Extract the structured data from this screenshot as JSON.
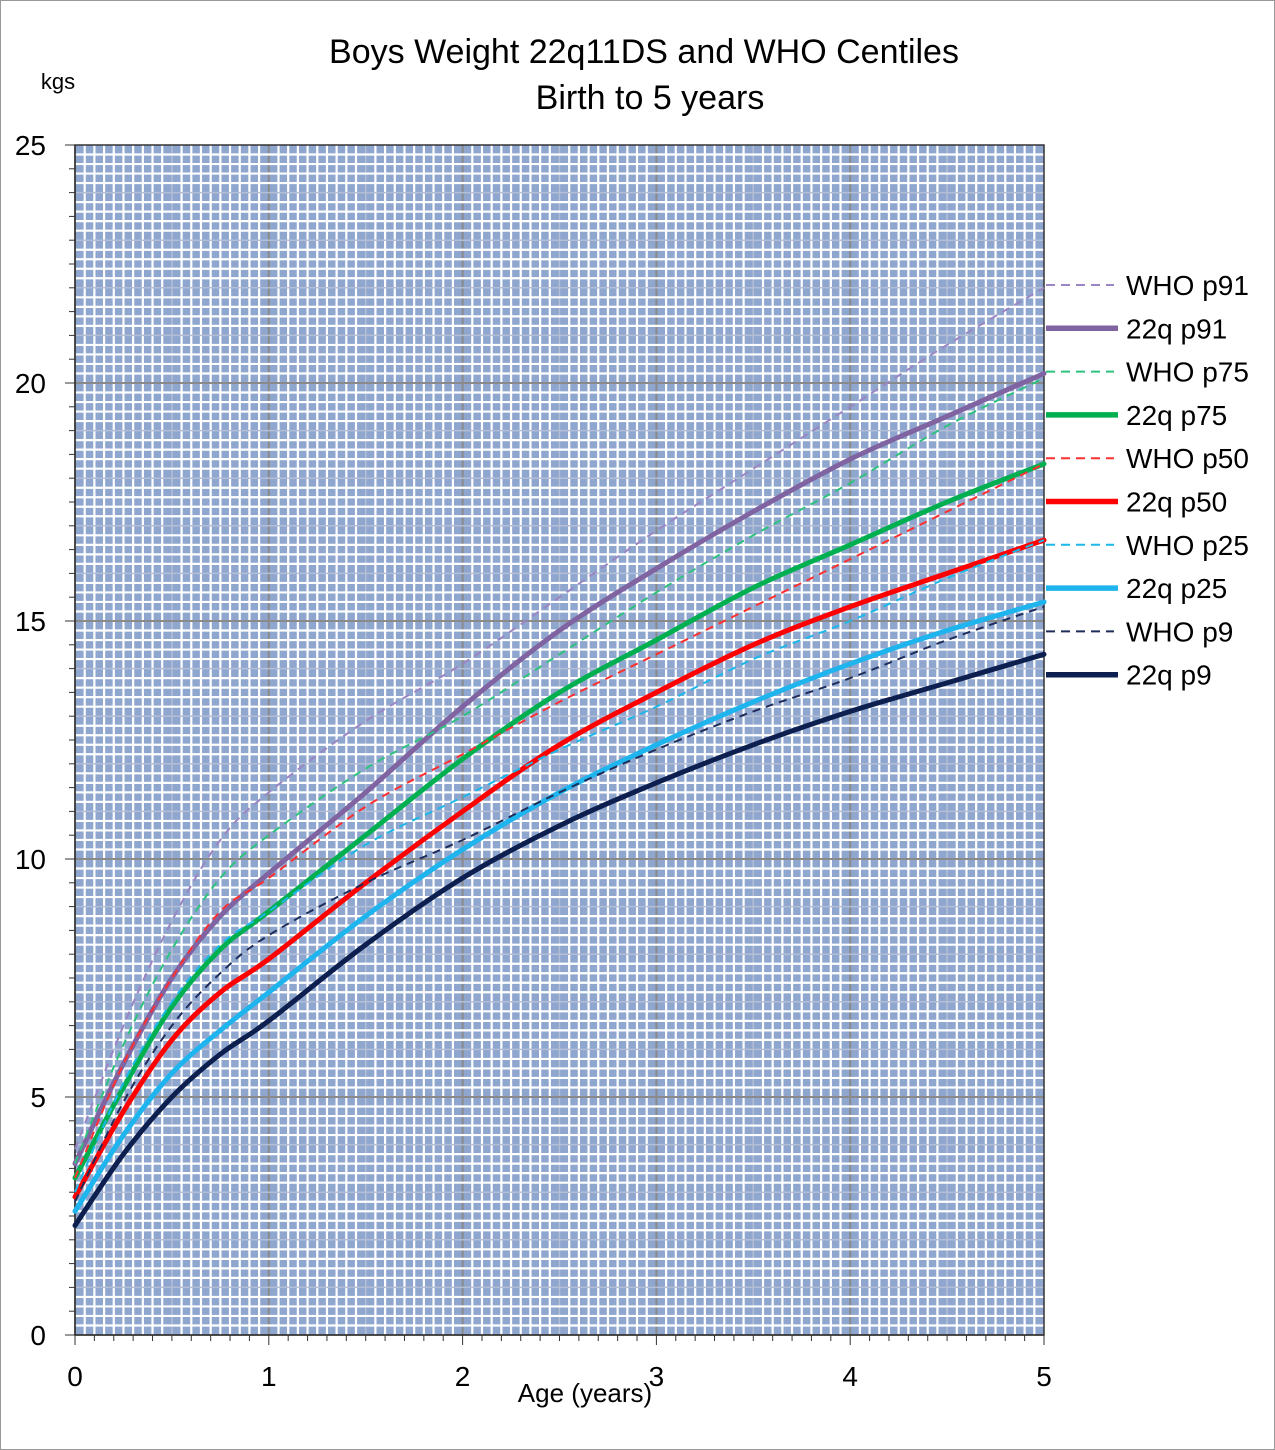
{
  "chart_data": {
    "type": "line",
    "title": "Boys Weight  22q11DS and WHO Centiles",
    "subtitle": "Birth to 5 years",
    "xlabel": "Age (years)",
    "ylabel": "kgs",
    "xlim": [
      0,
      5
    ],
    "ylim": [
      0,
      25
    ],
    "x_ticks": [
      "0",
      "1",
      "2",
      "3",
      "4",
      "5"
    ],
    "y_ticks": [
      "0",
      "5",
      "10",
      "15",
      "20",
      "25"
    ],
    "grid": true,
    "legend_position": "right",
    "x": [
      0,
      0.25,
      0.5,
      0.75,
      1,
      1.5,
      2,
      2.5,
      3,
      3.5,
      4,
      4.5,
      5
    ],
    "series": [
      {
        "name": "WHO p91",
        "color": "#9b86c3",
        "style": "dashed",
        "values": [
          3.9,
          6.5,
          8.7,
          10.4,
          11.4,
          12.9,
          14.1,
          15.5,
          16.9,
          18.2,
          19.5,
          20.8,
          22.0
        ]
      },
      {
        "name": "22q p91",
        "color": "#8064a2",
        "style": "solid",
        "values": [
          3.6,
          5.7,
          7.5,
          8.8,
          9.7,
          11.4,
          13.2,
          14.8,
          16.1,
          17.3,
          18.4,
          19.3,
          20.2
        ]
      },
      {
        "name": "WHO p75",
        "color": "#2ec27e",
        "style": "dashed",
        "values": [
          3.6,
          6.1,
          8.1,
          9.6,
          10.5,
          11.9,
          13.0,
          14.3,
          15.6,
          16.8,
          17.9,
          19.1,
          20.1
        ]
      },
      {
        "name": "22q p75",
        "color": "#00b050",
        "style": "solid",
        "values": [
          3.3,
          5.2,
          6.9,
          8.1,
          8.9,
          10.5,
          12.1,
          13.5,
          14.6,
          15.7,
          16.6,
          17.5,
          18.3
        ]
      },
      {
        "name": "WHO p50",
        "color": "#ff3030",
        "style": "dashed",
        "values": [
          3.3,
          5.7,
          7.5,
          8.9,
          9.6,
          11.1,
          12.2,
          13.3,
          14.3,
          15.3,
          16.3,
          17.3,
          18.3
        ]
      },
      {
        "name": "22q p50",
        "color": "#ff0000",
        "style": "solid",
        "values": [
          2.9,
          4.7,
          6.2,
          7.2,
          7.9,
          9.5,
          11.0,
          12.4,
          13.5,
          14.5,
          15.3,
          16.0,
          16.7
        ]
      },
      {
        "name": "WHO p25",
        "color": "#1cb8e8",
        "style": "dashed",
        "values": [
          3.0,
          5.3,
          7.0,
          8.2,
          8.9,
          10.3,
          11.3,
          12.3,
          13.2,
          14.2,
          15.0,
          15.9,
          16.7
        ]
      },
      {
        "name": "22q p25",
        "color": "#1eb4ee",
        "style": "solid",
        "values": [
          2.6,
          4.2,
          5.5,
          6.4,
          7.2,
          8.8,
          10.2,
          11.4,
          12.4,
          13.3,
          14.1,
          14.8,
          15.4
        ]
      },
      {
        "name": "WHO p9",
        "color": "#1f2d5a",
        "style": "dashed",
        "values": [
          2.8,
          4.9,
          6.5,
          7.6,
          8.4,
          9.5,
          10.4,
          11.4,
          12.3,
          13.1,
          13.8,
          14.6,
          15.3
        ]
      },
      {
        "name": "22q p9",
        "color": "#0d1f4f",
        "style": "solid",
        "values": [
          2.3,
          3.8,
          5.0,
          5.9,
          6.6,
          8.2,
          9.6,
          10.7,
          11.6,
          12.4,
          13.1,
          13.7,
          14.3
        ]
      }
    ]
  }
}
